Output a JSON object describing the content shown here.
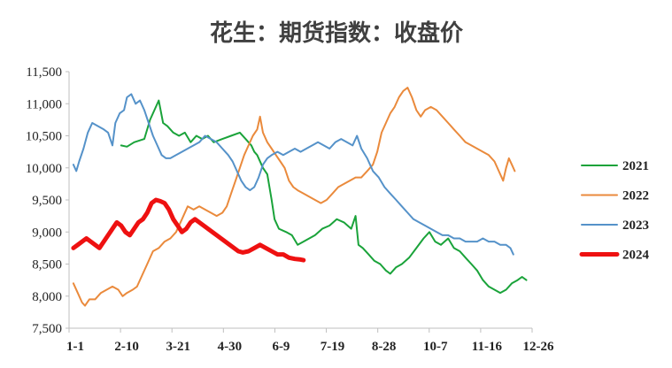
{
  "chart_data": {
    "type": "line",
    "title": "花生：期货指数：收盘价",
    "xlabel": "",
    "ylabel": "",
    "ylim": [
      7500,
      11500
    ],
    "y_ticks": [
      "7,500",
      "8,000",
      "8,500",
      "9,000",
      "9,500",
      "10,000",
      "10,500",
      "11,000",
      "11,500"
    ],
    "x_ticks": [
      "1-1",
      "2-10",
      "3-21",
      "4-30",
      "6-9",
      "7-19",
      "8-28",
      "10-7",
      "11-16",
      "12-26"
    ],
    "grid": false,
    "legend_position": "right",
    "series": [
      {
        "name": "2021",
        "color": "#1aa33a",
        "width": 2,
        "points": [
          [
            36,
            10350
          ],
          [
            40,
            10330
          ],
          [
            45,
            10400
          ],
          [
            52,
            10450
          ],
          [
            56,
            10750
          ],
          [
            59,
            10900
          ],
          [
            62,
            11050
          ],
          [
            65,
            10700
          ],
          [
            68,
            10650
          ],
          [
            72,
            10550
          ],
          [
            76,
            10500
          ],
          [
            80,
            10550
          ],
          [
            84,
            10400
          ],
          [
            88,
            10500
          ],
          [
            92,
            10450
          ],
          [
            96,
            10500
          ],
          [
            100,
            10400
          ],
          [
            106,
            10450
          ],
          [
            112,
            10500
          ],
          [
            118,
            10550
          ],
          [
            122,
            10450
          ],
          [
            126,
            10350
          ],
          [
            128,
            10250
          ],
          [
            130,
            10200
          ],
          [
            134,
            10000
          ],
          [
            137,
            9900
          ],
          [
            140,
            9500
          ],
          [
            142,
            9200
          ],
          [
            145,
            9050
          ],
          [
            150,
            9000
          ],
          [
            154,
            8950
          ],
          [
            158,
            8800
          ],
          [
            162,
            8850
          ],
          [
            166,
            8900
          ],
          [
            170,
            8950
          ],
          [
            175,
            9050
          ],
          [
            180,
            9100
          ],
          [
            185,
            9200
          ],
          [
            190,
            9150
          ],
          [
            195,
            9050
          ],
          [
            198,
            9250
          ],
          [
            200,
            8800
          ],
          [
            203,
            8750
          ],
          [
            207,
            8650
          ],
          [
            211,
            8550
          ],
          [
            215,
            8500
          ],
          [
            219,
            8400
          ],
          [
            222,
            8350
          ],
          [
            226,
            8450
          ],
          [
            230,
            8500
          ],
          [
            235,
            8600
          ],
          [
            240,
            8750
          ],
          [
            245,
            8900
          ],
          [
            249,
            9000
          ],
          [
            253,
            8850
          ],
          [
            257,
            8800
          ],
          [
            262,
            8900
          ],
          [
            266,
            8750
          ],
          [
            270,
            8700
          ],
          [
            274,
            8600
          ],
          [
            278,
            8500
          ],
          [
            282,
            8400
          ],
          [
            286,
            8250
          ],
          [
            290,
            8150
          ],
          [
            294,
            8100
          ],
          [
            298,
            8050
          ],
          [
            302,
            8100
          ],
          [
            306,
            8200
          ],
          [
            310,
            8250
          ],
          [
            313,
            8300
          ],
          [
            316,
            8250
          ]
        ]
      },
      {
        "name": "2022",
        "color": "#ea8a3c",
        "width": 2,
        "points": [
          [
            3,
            8200
          ],
          [
            6,
            8050
          ],
          [
            9,
            7900
          ],
          [
            11,
            7850
          ],
          [
            14,
            7950
          ],
          [
            18,
            7950
          ],
          [
            22,
            8050
          ],
          [
            26,
            8100
          ],
          [
            30,
            8150
          ],
          [
            34,
            8100
          ],
          [
            37,
            8000
          ],
          [
            40,
            8050
          ],
          [
            44,
            8100
          ],
          [
            47,
            8150
          ],
          [
            50,
            8300
          ],
          [
            54,
            8500
          ],
          [
            58,
            8700
          ],
          [
            62,
            8750
          ],
          [
            66,
            8850
          ],
          [
            70,
            8900
          ],
          [
            74,
            9000
          ],
          [
            78,
            9200
          ],
          [
            82,
            9400
          ],
          [
            86,
            9350
          ],
          [
            90,
            9400
          ],
          [
            94,
            9350
          ],
          [
            98,
            9300
          ],
          [
            102,
            9250
          ],
          [
            106,
            9300
          ],
          [
            109,
            9400
          ],
          [
            112,
            9600
          ],
          [
            115,
            9800
          ],
          [
            118,
            10000
          ],
          [
            121,
            10200
          ],
          [
            124,
            10350
          ],
          [
            127,
            10500
          ],
          [
            130,
            10600
          ],
          [
            132,
            10800
          ],
          [
            134,
            10550
          ],
          [
            137,
            10400
          ],
          [
            140,
            10300
          ],
          [
            143,
            10200
          ],
          [
            146,
            10100
          ],
          [
            149,
            10000
          ],
          [
            152,
            9800
          ],
          [
            155,
            9700
          ],
          [
            158,
            9650
          ],
          [
            162,
            9600
          ],
          [
            166,
            9550
          ],
          [
            170,
            9500
          ],
          [
            174,
            9450
          ],
          [
            178,
            9500
          ],
          [
            182,
            9600
          ],
          [
            186,
            9700
          ],
          [
            190,
            9750
          ],
          [
            194,
            9800
          ],
          [
            198,
            9850
          ],
          [
            202,
            9850
          ],
          [
            206,
            9950
          ],
          [
            210,
            10050
          ],
          [
            213,
            10250
          ],
          [
            216,
            10550
          ],
          [
            219,
            10700
          ],
          [
            222,
            10850
          ],
          [
            225,
            10950
          ],
          [
            228,
            11100
          ],
          [
            231,
            11200
          ],
          [
            234,
            11250
          ],
          [
            237,
            11100
          ],
          [
            240,
            10900
          ],
          [
            243,
            10800
          ],
          [
            246,
            10900
          ],
          [
            250,
            10950
          ],
          [
            254,
            10900
          ],
          [
            258,
            10800
          ],
          [
            262,
            10700
          ],
          [
            266,
            10600
          ],
          [
            270,
            10500
          ],
          [
            274,
            10400
          ],
          [
            278,
            10350
          ],
          [
            282,
            10300
          ],
          [
            286,
            10250
          ],
          [
            290,
            10200
          ],
          [
            294,
            10100
          ],
          [
            297,
            9950
          ],
          [
            300,
            9800
          ],
          [
            302,
            10000
          ],
          [
            304,
            10150
          ],
          [
            306,
            10050
          ],
          [
            308,
            9950
          ]
        ]
      },
      {
        "name": "2023",
        "color": "#5592c9",
        "width": 2,
        "points": [
          [
            3,
            10050
          ],
          [
            5,
            9950
          ],
          [
            7,
            10100
          ],
          [
            10,
            10300
          ],
          [
            13,
            10550
          ],
          [
            16,
            10700
          ],
          [
            20,
            10650
          ],
          [
            24,
            10600
          ],
          [
            27,
            10550
          ],
          [
            30,
            10350
          ],
          [
            32,
            10700
          ],
          [
            35,
            10850
          ],
          [
            38,
            10900
          ],
          [
            40,
            11100
          ],
          [
            43,
            11150
          ],
          [
            46,
            11000
          ],
          [
            49,
            11050
          ],
          [
            52,
            10900
          ],
          [
            55,
            10700
          ],
          [
            58,
            10500
          ],
          [
            61,
            10350
          ],
          [
            64,
            10200
          ],
          [
            67,
            10150
          ],
          [
            70,
            10150
          ],
          [
            74,
            10200
          ],
          [
            78,
            10250
          ],
          [
            82,
            10300
          ],
          [
            86,
            10350
          ],
          [
            90,
            10400
          ],
          [
            94,
            10500
          ],
          [
            98,
            10450
          ],
          [
            102,
            10400
          ],
          [
            106,
            10300
          ],
          [
            110,
            10200
          ],
          [
            113,
            10100
          ],
          [
            116,
            9950
          ],
          [
            119,
            9800
          ],
          [
            122,
            9700
          ],
          [
            125,
            9650
          ],
          [
            128,
            9700
          ],
          [
            131,
            9850
          ],
          [
            134,
            10050
          ],
          [
            137,
            10150
          ],
          [
            140,
            10200
          ],
          [
            144,
            10250
          ],
          [
            148,
            10200
          ],
          [
            152,
            10250
          ],
          [
            156,
            10300
          ],
          [
            160,
            10250
          ],
          [
            164,
            10300
          ],
          [
            168,
            10350
          ],
          [
            172,
            10400
          ],
          [
            176,
            10350
          ],
          [
            180,
            10300
          ],
          [
            184,
            10400
          ],
          [
            188,
            10450
          ],
          [
            192,
            10400
          ],
          [
            196,
            10350
          ],
          [
            199,
            10500
          ],
          [
            202,
            10300
          ],
          [
            206,
            10150
          ],
          [
            210,
            9950
          ],
          [
            214,
            9850
          ],
          [
            218,
            9700
          ],
          [
            222,
            9600
          ],
          [
            226,
            9500
          ],
          [
            230,
            9400
          ],
          [
            234,
            9300
          ],
          [
            238,
            9200
          ],
          [
            242,
            9150
          ],
          [
            246,
            9100
          ],
          [
            250,
            9050
          ],
          [
            254,
            9000
          ],
          [
            258,
            8950
          ],
          [
            262,
            8950
          ],
          [
            266,
            8900
          ],
          [
            270,
            8900
          ],
          [
            274,
            8850
          ],
          [
            278,
            8850
          ],
          [
            282,
            8850
          ],
          [
            286,
            8900
          ],
          [
            290,
            8850
          ],
          [
            294,
            8850
          ],
          [
            298,
            8800
          ],
          [
            302,
            8800
          ],
          [
            305,
            8750
          ],
          [
            307,
            8650
          ]
        ]
      },
      {
        "name": "2024",
        "color": "#ee1111",
        "width": 5,
        "points": [
          [
            3,
            8750
          ],
          [
            6,
            8800
          ],
          [
            9,
            8850
          ],
          [
            12,
            8900
          ],
          [
            15,
            8850
          ],
          [
            18,
            8800
          ],
          [
            21,
            8750
          ],
          [
            24,
            8850
          ],
          [
            27,
            8950
          ],
          [
            30,
            9050
          ],
          [
            33,
            9150
          ],
          [
            36,
            9100
          ],
          [
            39,
            9000
          ],
          [
            42,
            8950
          ],
          [
            45,
            9050
          ],
          [
            48,
            9150
          ],
          [
            51,
            9200
          ],
          [
            54,
            9300
          ],
          [
            57,
            9450
          ],
          [
            60,
            9500
          ],
          [
            63,
            9480
          ],
          [
            66,
            9450
          ],
          [
            69,
            9350
          ],
          [
            72,
            9200
          ],
          [
            75,
            9100
          ],
          [
            78,
            9000
          ],
          [
            81,
            9050
          ],
          [
            84,
            9150
          ],
          [
            87,
            9200
          ],
          [
            90,
            9150
          ],
          [
            93,
            9100
          ],
          [
            96,
            9050
          ],
          [
            99,
            9000
          ],
          [
            102,
            8950
          ],
          [
            105,
            8900
          ],
          [
            108,
            8850
          ],
          [
            111,
            8800
          ],
          [
            114,
            8750
          ],
          [
            117,
            8700
          ],
          [
            120,
            8680
          ],
          [
            124,
            8700
          ],
          [
            128,
            8750
          ],
          [
            132,
            8800
          ],
          [
            136,
            8750
          ],
          [
            140,
            8700
          ],
          [
            144,
            8650
          ],
          [
            148,
            8650
          ],
          [
            152,
            8600
          ],
          [
            156,
            8580
          ],
          [
            160,
            8570
          ],
          [
            162,
            8560
          ]
        ]
      }
    ]
  }
}
